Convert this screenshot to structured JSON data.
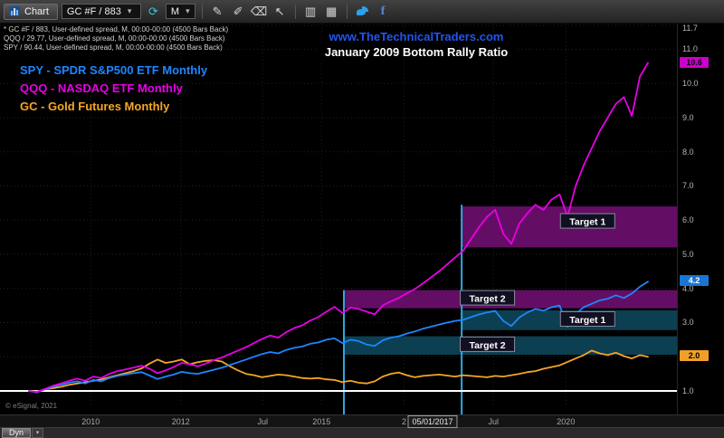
{
  "toolbar": {
    "tab_label": "Chart",
    "symbol_value": "GC #F / 883",
    "interval_value": "M",
    "dropdown_arrow": "▾",
    "icons": {
      "refresh": "⟳",
      "pencil": "✎",
      "pen": "✐",
      "eraser": "⌫",
      "pointer": "↖",
      "bars": "▥",
      "grid": "▦",
      "facebook": "f"
    }
  },
  "info_lines": [
    "* GC #F / 883, User-defined spread, M, 00:00-00:00 (4500 Bars Back)",
    "QQQ / 29.77, User-defined spread, M, 00:00-00:00 (4500 Bars Back)",
    "SPY / 90.44, User-defined spread, M, 00:00-00:00 (4500 Bars Back)"
  ],
  "title": {
    "url": "www.TheTechnicalTraders.com",
    "main": "January 2009 Bottom Rally Ratio"
  },
  "legend": [
    {
      "id": "spy",
      "label": "SPY - SPDR S&P500 ETF Monthly",
      "color": "#1e86ff"
    },
    {
      "id": "qqq",
      "label": "QQQ - NASDAQ ETF Monthly",
      "color": "#e800e8"
    },
    {
      "id": "gc",
      "label": "GC - Gold Futures Monthly",
      "color": "#f5a623"
    }
  ],
  "copyright": "© eSignal, 2021",
  "bottom": {
    "dyn_label": "Dyn"
  },
  "colors": {
    "link_blue": "#2255ee",
    "title_white": "#ffffff"
  },
  "chart_data": {
    "type": "line",
    "title": "January 2009 Bottom Rally Ratio",
    "ylim": [
      1.0,
      11.7
    ],
    "grid": "dotted",
    "y_ticks": [
      {
        "v": 11.7,
        "label": "11.7"
      },
      {
        "v": 11.0,
        "label": "11.0"
      },
      {
        "v": 10.0,
        "label": "10.0"
      },
      {
        "v": 9.0,
        "label": "9.0"
      },
      {
        "v": 8.0,
        "label": "8.0"
      },
      {
        "v": 7.0,
        "label": "7.0"
      },
      {
        "v": 6.0,
        "label": "6.0"
      },
      {
        "v": 5.0,
        "label": "5.0"
      },
      {
        "v": 4.0,
        "label": "4.0"
      },
      {
        "v": 3.0,
        "label": "3.0"
      },
      {
        "v": 2.0,
        "label": "2.0"
      },
      {
        "v": 1.0,
        "label": "1.0"
      }
    ],
    "x_ticks": [
      {
        "label": "2010",
        "f": 0.134
      },
      {
        "label": "2012",
        "f": 0.267
      },
      {
        "label": "Jul",
        "f": 0.388
      },
      {
        "label": "2015",
        "f": 0.475
      },
      {
        "label": "2",
        "f": 0.597
      },
      {
        "label": "Jul",
        "f": 0.729
      },
      {
        "label": "2020",
        "f": 0.836
      }
    ],
    "date_callout": {
      "label": "05/01/2017",
      "f": 0.639
    },
    "badges": [
      {
        "id": "qqq",
        "v": 10.6,
        "label": "10.6",
        "bg": "#cc00cc",
        "fg": "#000000"
      },
      {
        "id": "spy",
        "v": 4.2,
        "label": "4.2",
        "bg": "#1976d2",
        "fg": "#ffffff"
      },
      {
        "id": "gc",
        "v": 2.0,
        "label": "2.0",
        "bg": "#f0a028",
        "fg": "#000000"
      }
    ],
    "hline": {
      "v": 1.0,
      "color": "#ffffff"
    },
    "vline_color": "#2fa8df",
    "vlines": [
      {
        "f": 0.508,
        "v_top": 3.95
      },
      {
        "f": 0.682,
        "v_top": 6.45
      }
    ],
    "bands": [
      {
        "x0": 0.682,
        "x1": 1.0,
        "v0": 5.2,
        "v1": 6.4,
        "color": "rgba(116,16,118,0.85)",
        "label": "Target 1",
        "lx": 0.868,
        "lv": 5.95
      },
      {
        "x0": 0.508,
        "x1": 1.0,
        "v0": 3.42,
        "v1": 3.95,
        "color": "rgba(116,16,118,0.85)",
        "label": "Target 2",
        "lx": 0.72,
        "lv": 3.7
      },
      {
        "x0": 0.682,
        "x1": 1.0,
        "v0": 2.78,
        "v1": 3.36,
        "color": "rgba(14,74,95,0.85)",
        "label": "Target 1",
        "lx": 0.868,
        "lv": 3.08
      },
      {
        "x0": 0.508,
        "x1": 1.0,
        "v0": 2.06,
        "v1": 2.6,
        "color": "rgba(14,74,95,0.85)",
        "label": "Target 2",
        "lx": 0.72,
        "lv": 2.34
      }
    ],
    "series": [
      {
        "id": "gc",
        "name": "GC - Gold Futures Monthly",
        "color": "#f5a623",
        "values": [
          1.0,
          0.98,
          1.05,
          1.08,
          1.12,
          1.18,
          1.22,
          1.26,
          1.3,
          1.34,
          1.4,
          1.46,
          1.52,
          1.58,
          1.66,
          1.8,
          1.92,
          1.82,
          1.86,
          1.92,
          1.78,
          1.84,
          1.88,
          1.9,
          1.86,
          1.72,
          1.6,
          1.5,
          1.46,
          1.4,
          1.44,
          1.48,
          1.46,
          1.42,
          1.38,
          1.36,
          1.38,
          1.34,
          1.32,
          1.26,
          1.3,
          1.24,
          1.22,
          1.28,
          1.42,
          1.5,
          1.54,
          1.46,
          1.4,
          1.44,
          1.46,
          1.48,
          1.45,
          1.42,
          1.46,
          1.44,
          1.42,
          1.4,
          1.44,
          1.42,
          1.46,
          1.5,
          1.55,
          1.58,
          1.65,
          1.7,
          1.75,
          1.85,
          1.95,
          2.05,
          2.18,
          2.1,
          2.05,
          2.12,
          2.02,
          1.95,
          2.05,
          2.0
        ]
      },
      {
        "id": "spy",
        "name": "SPY - SPDR S&P500 ETF Monthly",
        "color": "#1e86ff",
        "values": [
          1.0,
          0.96,
          1.05,
          1.12,
          1.18,
          1.24,
          1.28,
          1.22,
          1.32,
          1.28,
          1.38,
          1.44,
          1.48,
          1.52,
          1.55,
          1.45,
          1.35,
          1.42,
          1.48,
          1.56,
          1.52,
          1.5,
          1.56,
          1.62,
          1.68,
          1.76,
          1.84,
          1.92,
          2.0,
          2.08,
          2.14,
          2.1,
          2.2,
          2.26,
          2.3,
          2.38,
          2.42,
          2.5,
          2.54,
          2.4,
          2.5,
          2.46,
          2.36,
          2.32,
          2.48,
          2.56,
          2.6,
          2.68,
          2.74,
          2.82,
          2.88,
          2.94,
          3.0,
          3.05,
          3.08,
          3.16,
          3.24,
          3.3,
          3.34,
          3.05,
          2.9,
          3.15,
          3.3,
          3.4,
          3.35,
          3.45,
          3.5,
          2.88,
          3.25,
          3.45,
          3.55,
          3.65,
          3.7,
          3.8,
          3.72,
          3.85,
          4.05,
          4.2
        ]
      },
      {
        "id": "qqq",
        "name": "QQQ - NASDAQ ETF Monthly",
        "color": "#e800e8",
        "values": [
          1.0,
          0.97,
          1.06,
          1.15,
          1.22,
          1.3,
          1.36,
          1.3,
          1.42,
          1.38,
          1.5,
          1.58,
          1.63,
          1.68,
          1.74,
          1.65,
          1.52,
          1.6,
          1.7,
          1.82,
          1.78,
          1.72,
          1.8,
          1.9,
          1.98,
          2.08,
          2.18,
          2.28,
          2.4,
          2.52,
          2.62,
          2.56,
          2.72,
          2.84,
          2.92,
          3.06,
          3.16,
          3.32,
          3.46,
          3.28,
          3.44,
          3.4,
          3.32,
          3.24,
          3.5,
          3.62,
          3.72,
          3.86,
          3.98,
          4.15,
          4.32,
          4.5,
          4.7,
          4.9,
          5.1,
          5.45,
          5.8,
          6.1,
          6.3,
          5.6,
          5.3,
          5.9,
          6.2,
          6.45,
          6.3,
          6.6,
          6.75,
          6.1,
          7.0,
          7.6,
          8.1,
          8.6,
          9.0,
          9.4,
          9.6,
          9.05,
          10.2,
          10.6
        ]
      }
    ]
  }
}
